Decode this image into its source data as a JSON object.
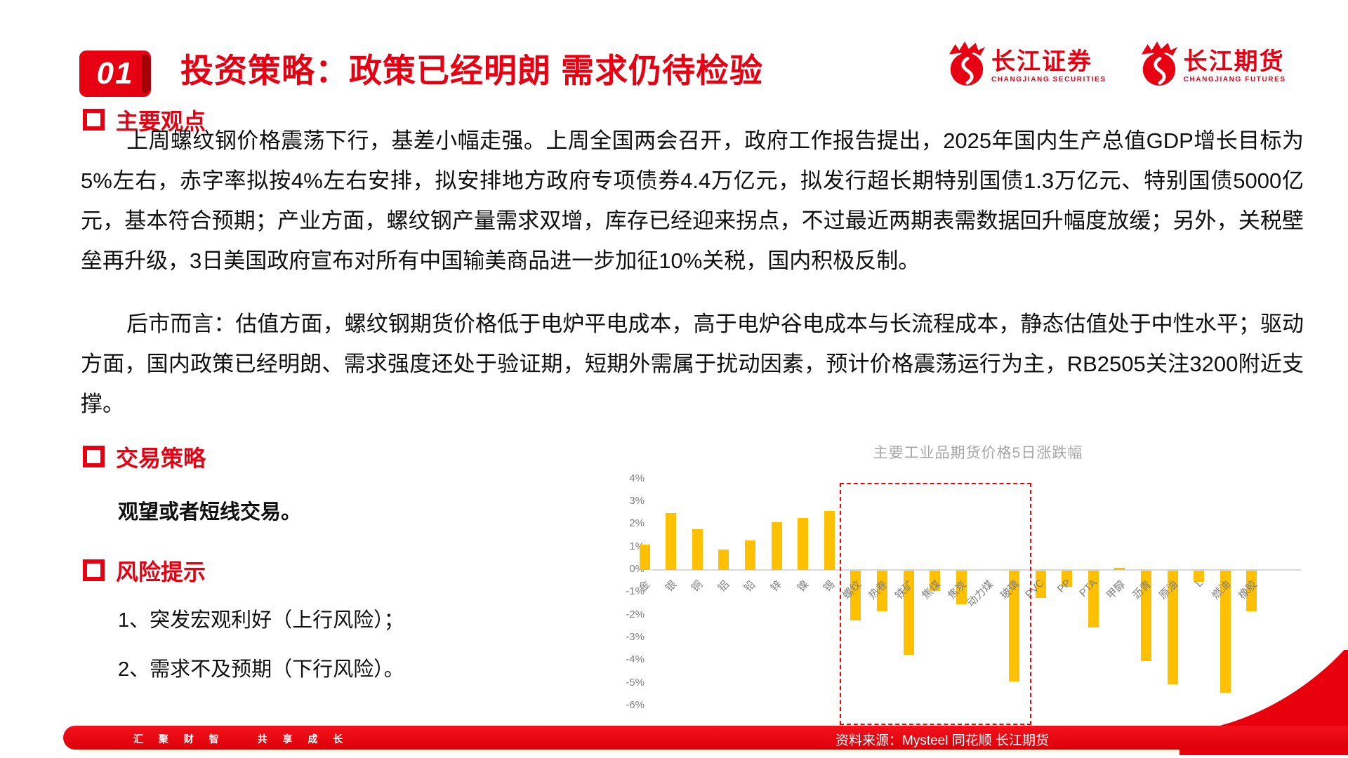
{
  "badge": "01",
  "title": "投资策略：政策已经明朗 需求仍待检验",
  "logos": [
    {
      "cn": "长江证券",
      "en": "CHANGJIANG SECURITIES"
    },
    {
      "cn": "长江期货",
      "en": "CHANGJIANG FUTURES"
    }
  ],
  "sections": {
    "views": {
      "header": "主要观点",
      "para1": "上周螺纹钢价格震荡下行，基差小幅走强。上周全国两会召开，政府工作报告提出，2025年国内生产总值GDP增长目标为5%左右，赤字率拟按4%左右安排，拟安排地方政府专项债券4.4万亿元，拟发行超长期特别国债1.3万亿元、特别国债5000亿元，基本符合预期；产业方面，螺纹钢产量需求双增，库存已经迎来拐点，不过最近两期表需数据回升幅度放缓；另外，关税壁垒再升级，3日美国政府宣布对所有中国输美商品进一步加征10%关税，国内积极反制。",
      "para2": "后市而言：估值方面，螺纹钢期货价格低于电炉平电成本，高于电炉谷电成本与长流程成本，静态估值处于中性水平；驱动方面，国内政策已经明朗、需求强度还处于验证期，短期外需属于扰动因素，预计价格震荡运行为主，RB2505关注3200附近支撑。"
    },
    "strategy": {
      "header": "交易策略",
      "body": "观望或者短线交易。"
    },
    "risks": {
      "header": "风险提示",
      "items": [
        "1、突发宏观利好（上行风险）；",
        "2、需求不及预期（下行风险）。"
      ]
    }
  },
  "chart_data": {
    "type": "bar",
    "title": "主要工业品期货价格5日涨跌幅",
    "categories": [
      "金",
      "银",
      "铜",
      "铝",
      "铅",
      "锌",
      "镍",
      "锡",
      "螺纹",
      "热卷",
      "铁矿",
      "焦煤",
      "焦炭",
      "动力煤",
      "玻璃",
      "PVC",
      "PP",
      "PTA",
      "甲醇",
      "沥青",
      "原油",
      "L",
      "燃油",
      "橡胶"
    ],
    "values": [
      1.1,
      2.5,
      1.8,
      0.9,
      1.3,
      2.1,
      2.3,
      2.6,
      -2.2,
      -1.8,
      -3.7,
      -0.9,
      -1.5,
      0.0,
      -4.9,
      -1.2,
      -0.7,
      -2.5,
      0.1,
      -4.0,
      -5.0,
      -0.5,
      -5.4,
      -1.8
    ],
    "yticks": [
      "4%",
      "3%",
      "2%",
      "1%",
      "0%",
      "-1%",
      "-2%",
      "-3%",
      "-4%",
      "-5%",
      "-6%"
    ],
    "ylim": [
      -6,
      4
    ],
    "grid": false,
    "legend": "none",
    "bar_color": "#FFC000",
    "highlight_box": {
      "from": "螺纹",
      "to": "玻璃",
      "color": "#FF0000",
      "style": "dashed"
    }
  },
  "footer": {
    "slogan_left": "汇 聚 财 智",
    "slogan_right": "共 享 成 长",
    "source": "资料来源：Mysteel  同花顺  长江期货"
  },
  "colors": {
    "accent_red": "#E60012",
    "bar_gold": "#FFC000",
    "chart_text_gray": "#7F7F7F",
    "chart_title_gray": "#A6A6A6",
    "highlight_red": "#FF0000",
    "footer_red": "#E8000D"
  }
}
